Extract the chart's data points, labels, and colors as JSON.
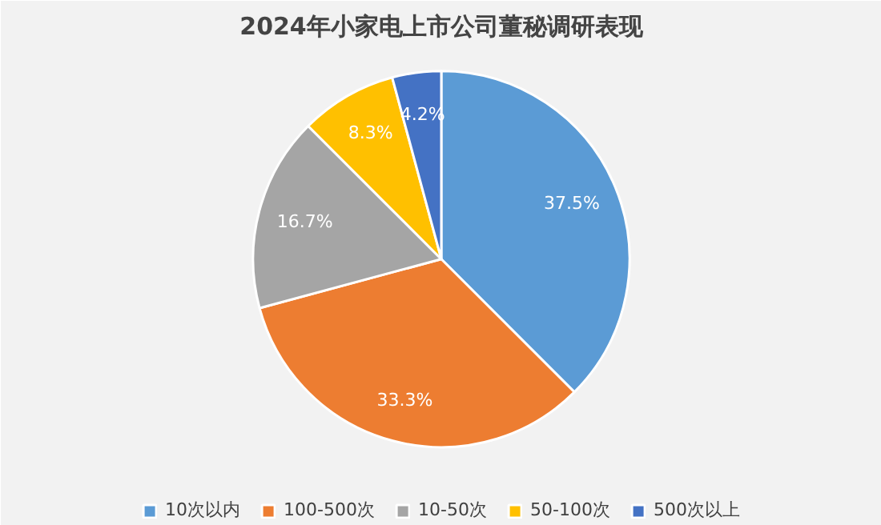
{
  "chart_data": {
    "type": "pie",
    "title": "2024年小家电上市公司董秘调研表现",
    "categories": [
      "10次以内",
      "100-500次",
      "10-50次",
      "50-100次",
      "500次以上"
    ],
    "values": [
      37.5,
      33.3,
      16.7,
      8.3,
      4.2
    ],
    "colors": [
      "#5b9bd5",
      "#ed7d31",
      "#a5a5a5",
      "#ffc000",
      "#4472c4"
    ],
    "value_labels": [
      "37.5%",
      "33.3%",
      "16.7%",
      "8.3%",
      "4.2%"
    ],
    "legend": "bottom"
  }
}
